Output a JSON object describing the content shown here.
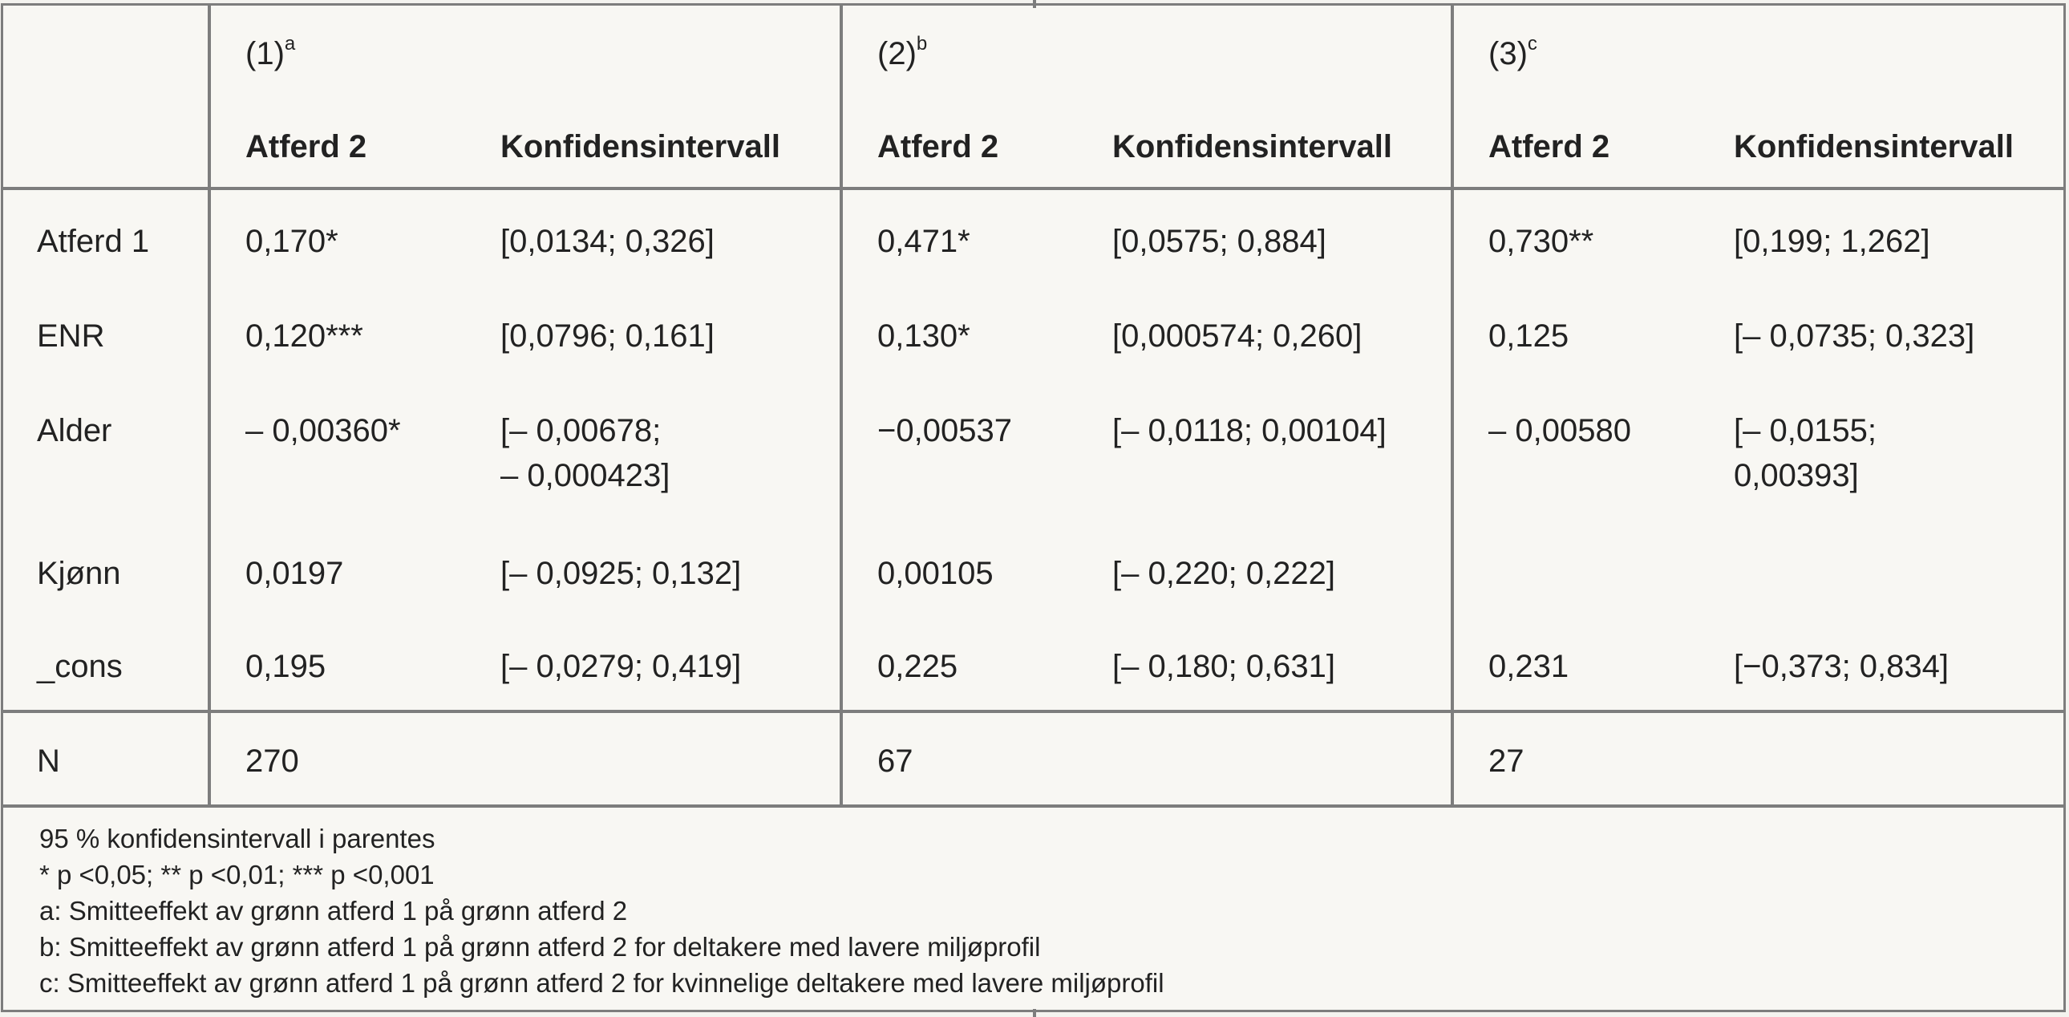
{
  "models": [
    {
      "label": "(1)",
      "sup": "a"
    },
    {
      "label": "(2)",
      "sup": "b"
    },
    {
      "label": "(3)",
      "sup": "c"
    }
  ],
  "col_headers": {
    "coef": "Atferd 2",
    "ci": "Konfidensintervall"
  },
  "rows": [
    {
      "label": "Atferd 1",
      "cells": [
        {
          "coef": "0,170*",
          "ci": [
            "[0,0134; 0,326]"
          ]
        },
        {
          "coef": "0,471*",
          "ci": [
            "[0,0575; 0,884]"
          ]
        },
        {
          "coef": "0,730**",
          "ci": [
            "[0,199; 1,262]"
          ]
        }
      ]
    },
    {
      "label": "ENR",
      "cells": [
        {
          "coef": "0,120***",
          "ci": [
            "[0,0796; 0,161]"
          ]
        },
        {
          "coef": "0,130*",
          "ci": [
            "[0,000574; 0,260]"
          ]
        },
        {
          "coef": "0,125",
          "ci": [
            "[– 0,0735; 0,323]"
          ]
        }
      ]
    },
    {
      "label": "Alder",
      "cells": [
        {
          "coef": "– 0,00360*",
          "ci": [
            "[– 0,00678;",
            "– 0,000423]"
          ]
        },
        {
          "coef": "−0,00537",
          "ci": [
            "[– 0,0118; 0,00104]"
          ]
        },
        {
          "coef": "– 0,00580",
          "ci": [
            "[– 0,0155;",
            "0,00393]"
          ]
        }
      ]
    },
    {
      "label": "Kjønn",
      "cells": [
        {
          "coef": "0,0197",
          "ci": [
            "[– 0,0925; 0,132]"
          ]
        },
        {
          "coef": "0,00105",
          "ci": [
            "[– 0,220; 0,222]"
          ]
        },
        {
          "coef": "",
          "ci": [
            ""
          ]
        }
      ]
    },
    {
      "label": "_cons",
      "cells": [
        {
          "coef": "0,195",
          "ci": [
            "[– 0,0279; 0,419]"
          ]
        },
        {
          "coef": "0,225",
          "ci": [
            "[– 0,180; 0,631]"
          ]
        },
        {
          "coef": "0,231",
          "ci": [
            "[−0,373; 0,834]"
          ]
        }
      ]
    }
  ],
  "n_row": {
    "label": "N",
    "values": [
      "270",
      "67",
      "27"
    ]
  },
  "notes": [
    "95 % konfidensintervall i parentes",
    "* p <0,05; ** p <0,01; *** p <0,001",
    "a: Smitteeffekt av grønn atferd 1 på grønn atferd 2",
    "b: Smitteeffekt av grønn atferd 1 på grønn atferd 2 for deltakere med lavere miljøprofil",
    "c: Smitteeffekt av grønn atferd 1 på grønn atferd 2 for kvinnelige deltakere med lavere miljøprofil"
  ]
}
